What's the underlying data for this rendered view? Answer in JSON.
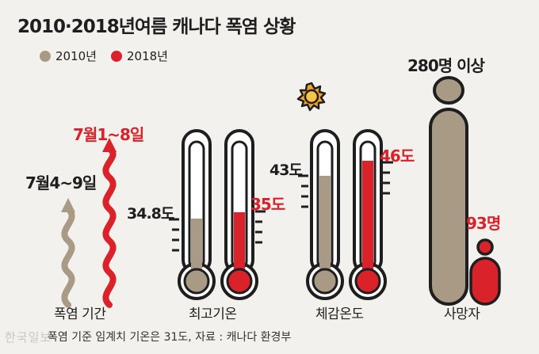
{
  "title": "2010·2018년여름 캐나다 폭염 상황",
  "legend": [
    {
      "label": "2010년",
      "color": "#a89a85"
    },
    {
      "label": "2018년",
      "color": "#d9222a"
    }
  ],
  "colors": {
    "y2010": "#a89a85",
    "y2018": "#d9222a",
    "outline": "#1e1e1e",
    "glass": "#ffffff",
    "sun": "#f3a32a"
  },
  "heatwave_period": {
    "label": "폭염 기간",
    "v2010": "7월4~9일",
    "v2018": "7월1~8일"
  },
  "max_temp": {
    "label": "최고기온",
    "v2010": "34.8도",
    "v2018": "35도"
  },
  "feels_like": {
    "label": "체감온도",
    "v2010": "43도",
    "v2018": "46도"
  },
  "deaths": {
    "label": "사망자",
    "v2010": "280명 이상",
    "v2018": "93명"
  },
  "footer": "폭염 기준 임계치 기온은 31도, 자료 : 캐나다 환경부",
  "watermark": "한국일보",
  "icons": {
    "sun": "sun-icon",
    "thermometer": "thermometer-icon",
    "person": "person-icon",
    "heat-wave": "heat-wave-icon"
  }
}
